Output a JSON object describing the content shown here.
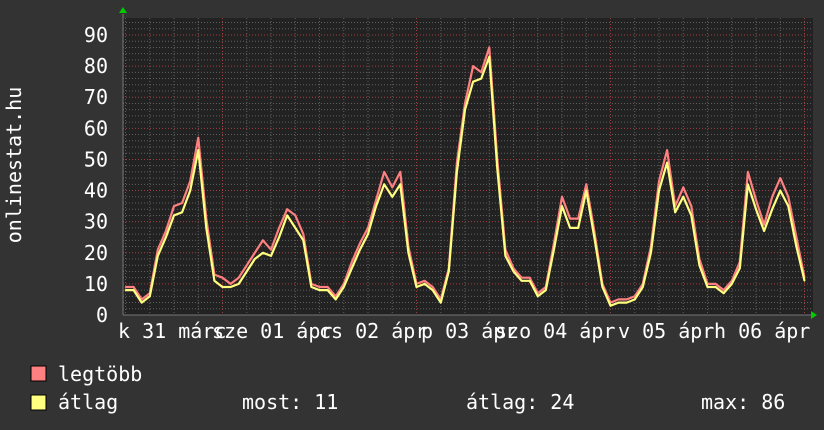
{
  "chart_data": {
    "type": "line",
    "title": "",
    "ylabel": "onlinestat.hu",
    "xlabel": "",
    "ylim": [
      0,
      95
    ],
    "yticks": [
      "0",
      "10",
      "20",
      "30",
      "40",
      "50",
      "60",
      "70",
      "80",
      "90"
    ],
    "x_start": "márc 31 00:00",
    "step_hours": 2,
    "xtick_labels": [
      "k 31 márc",
      "sze 01 ápr",
      "cs 02 ápr",
      "p 03 ápr",
      "szo 04 ápr",
      "v 05 ápr",
      "h 06 ápr"
    ],
    "grid": true,
    "legend_position": "bottom-left",
    "series": [
      {
        "name": "legtöbb",
        "color": "#ff8080",
        "values": [
          9,
          9,
          5,
          7,
          21,
          27,
          35,
          36,
          43,
          57,
          31,
          13,
          12,
          10,
          12,
          16,
          20,
          24,
          21,
          28,
          34,
          32,
          26,
          10,
          9,
          9,
          6,
          10,
          17,
          23,
          28,
          37,
          46,
          41,
          46,
          22,
          10,
          11,
          9,
          5,
          15,
          49,
          68,
          80,
          78,
          86,
          50,
          21,
          15,
          12,
          12,
          7,
          9,
          23,
          38,
          31,
          31,
          42,
          27,
          10,
          4,
          5,
          5,
          6,
          10,
          22,
          43,
          53,
          35,
          41,
          35,
          18,
          10,
          10,
          8,
          11,
          17,
          46,
          37,
          29,
          38,
          44,
          38,
          25,
          12
        ]
      },
      {
        "name": "átlag",
        "color": "#ffff80",
        "values": [
          8,
          8,
          4,
          6,
          19,
          25,
          32,
          33,
          40,
          53,
          28,
          11,
          9,
          9,
          10,
          14,
          18,
          20,
          19,
          25,
          32,
          28,
          24,
          9,
          8,
          8,
          5,
          9,
          15,
          21,
          26,
          35,
          42,
          38,
          42,
          20,
          9,
          10,
          8,
          4,
          14,
          46,
          66,
          75,
          76,
          83,
          47,
          19,
          14,
          11,
          11,
          6,
          8,
          21,
          35,
          28,
          28,
          40,
          25,
          9,
          3,
          4,
          4,
          5,
          9,
          20,
          40,
          49,
          33,
          38,
          32,
          16,
          9,
          9,
          7,
          10,
          15,
          42,
          34,
          27,
          34,
          40,
          35,
          22,
          11
        ]
      }
    ]
  },
  "legend": {
    "items": [
      {
        "label": "legtöbb",
        "color": "#ff8080"
      },
      {
        "label": "átlag",
        "color": "#ffff80"
      }
    ],
    "stats": {
      "now": "most: 11",
      "avg": "átlag: 24",
      "max": "max: 86"
    }
  },
  "colors": {
    "background": "#333333",
    "plot_background": "#222222",
    "major_grid": "#a04040",
    "minor_grid": "#606060",
    "axis_arrow": "#00cc00"
  }
}
